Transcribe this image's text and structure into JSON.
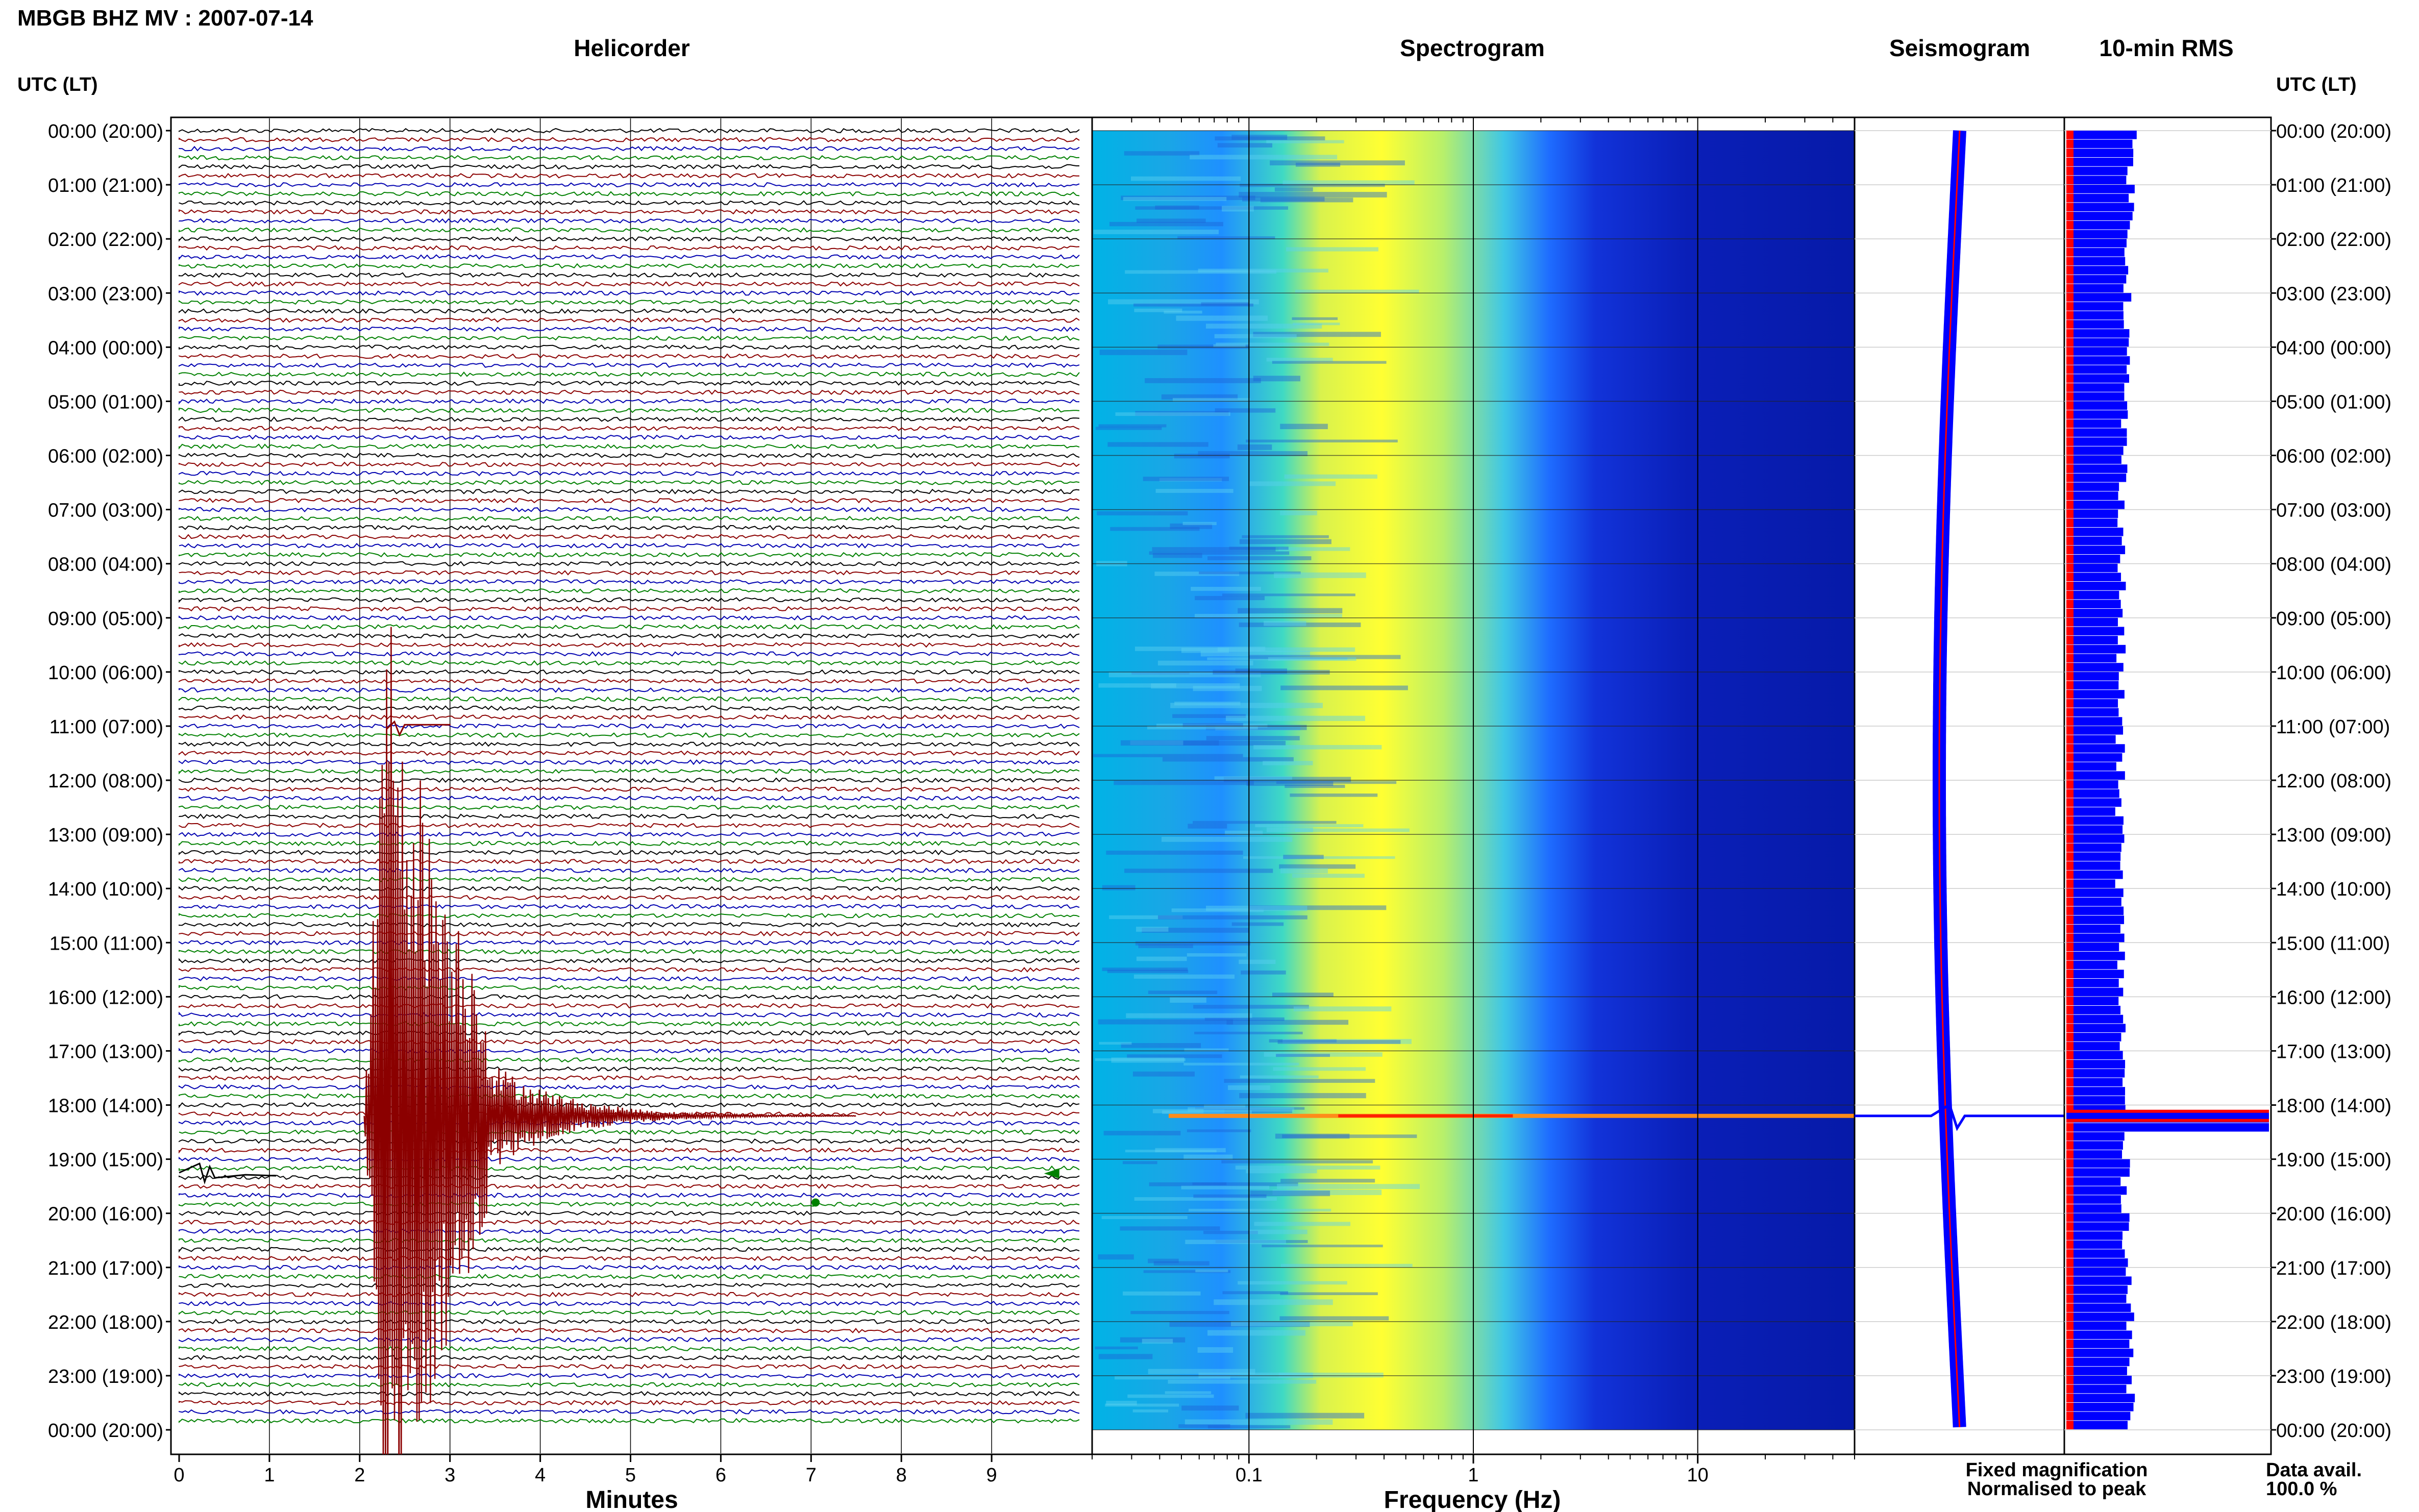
{
  "title": "MBGB BHZ MV : 2007-07-14",
  "panels": {
    "helicorder": "Helicorder",
    "spectrogram": "Spectrogram",
    "seismogram": "Seismogram",
    "rms": "10-min RMS"
  },
  "time_axis_label": "UTC (LT)",
  "time_labels": [
    "00:00 (20:00)",
    "01:00 (21:00)",
    "02:00 (22:00)",
    "03:00 (23:00)",
    "04:00 (00:00)",
    "05:00 (01:00)",
    "06:00 (02:00)",
    "07:00 (03:00)",
    "08:00 (04:00)",
    "09:00 (05:00)",
    "10:00 (06:00)",
    "11:00 (07:00)",
    "12:00 (08:00)",
    "13:00 (09:00)",
    "14:00 (10:00)",
    "15:00 (11:00)",
    "16:00 (12:00)",
    "17:00 (13:00)",
    "18:00 (14:00)",
    "19:00 (15:00)",
    "20:00 (16:00)",
    "21:00 (17:00)",
    "22:00 (18:00)",
    "23:00 (19:00)",
    "00:00 (20:00)"
  ],
  "helicorder_xlabel": "Minutes",
  "helicorder_ticks": [
    "0",
    "1",
    "2",
    "3",
    "4",
    "5",
    "6",
    "7",
    "8",
    "9"
  ],
  "spectrogram_xlabel": "Frequency (Hz)",
  "spectrogram_ticks": [
    "0.1",
    "1",
    "10"
  ],
  "legend": {
    "fixed": "Fixed magnification",
    "normalised": "Normalised to peak",
    "fixed_color": "#0000ff",
    "normalised_color": "#ff0000"
  },
  "data_avail": {
    "label": "Data avail.",
    "value": "100.0 %"
  },
  "colors": {
    "trace_cycle": [
      "#000000",
      "#8b0000",
      "#0000b0",
      "#008000"
    ],
    "event_trace": "#8b0000",
    "seismogram": "#0000ff",
    "rms_bar": "#0000ff",
    "rms_norm": "#ff0000"
  },
  "chart_data": {
    "type": "heatmap",
    "title": "MBGB BHZ MV : 2007-07-14",
    "helicorder": {
      "x_range_minutes": [
        0,
        10
      ],
      "lines_per_hour": 6,
      "hours": 24,
      "event": {
        "start_time_utc": "18:12",
        "peak_hour": 18.2,
        "decay_minutes": 6
      }
    },
    "spectrogram": {
      "x_scale": "log",
      "x_range_hz": [
        0.02,
        50
      ],
      "dominant_band_hz": [
        0.2,
        1.0
      ],
      "event_time_utc": "18:12"
    },
    "rms": {
      "event_time_utc": "18:12",
      "normalised_to_peak": true
    }
  }
}
